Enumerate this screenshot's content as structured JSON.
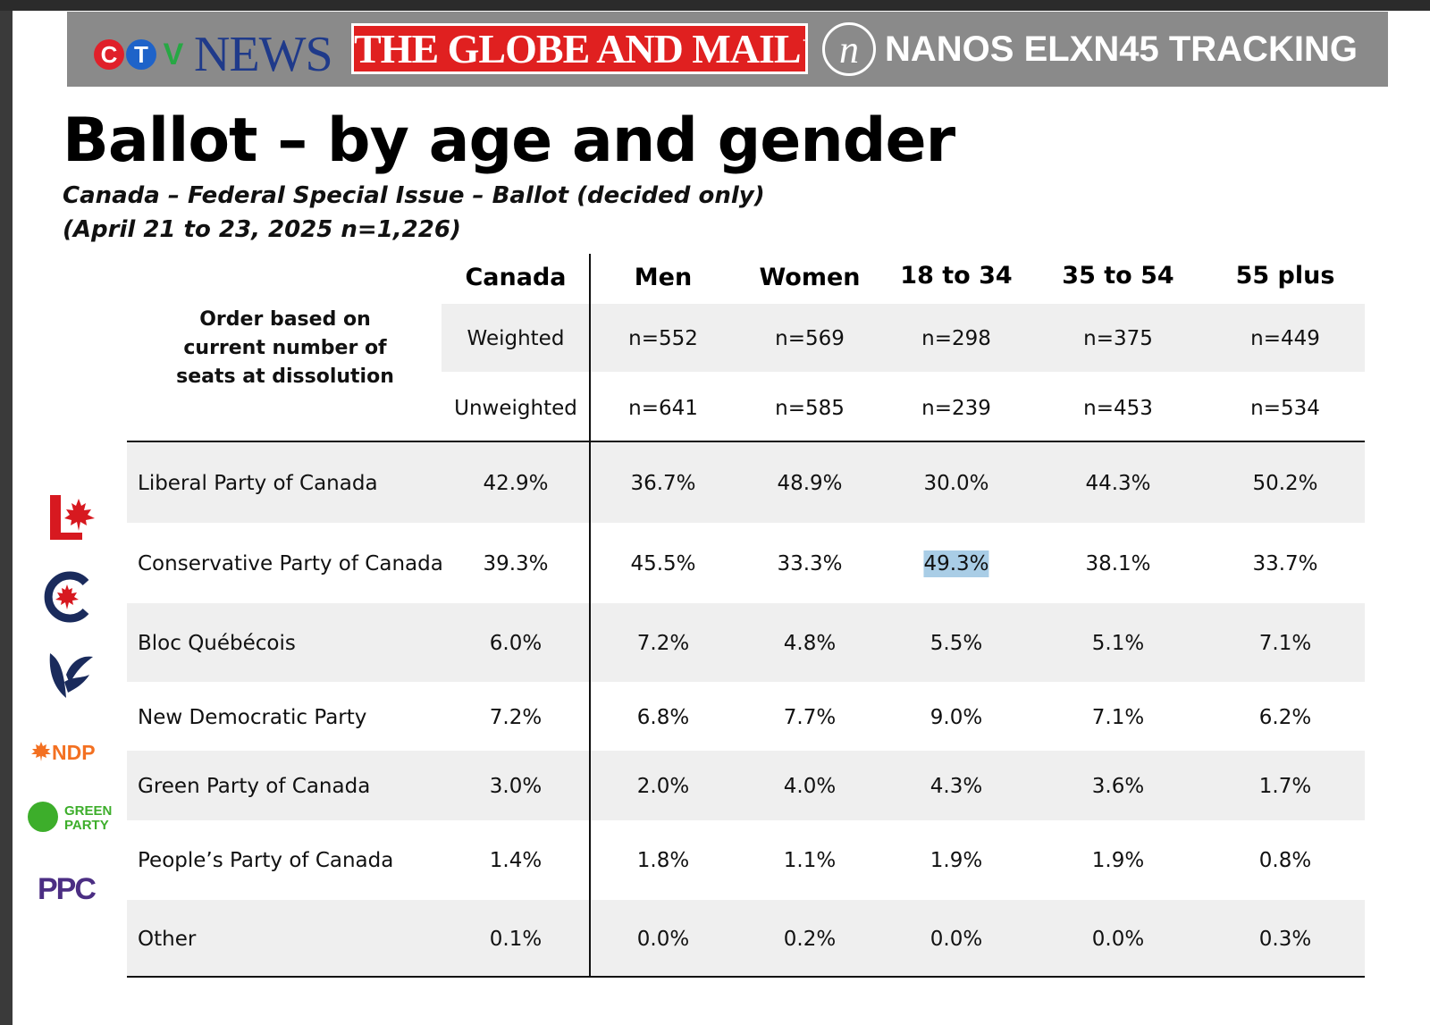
{
  "banner": {
    "ctv_letters": [
      "C",
      "T",
      "V"
    ],
    "ctv_news": "NEWS",
    "globe": "THE GLOBE AND MAIL",
    "nanos_mark": "n",
    "nanos": "NANOS ELXN45 TRACKING",
    "colors": {
      "ctv_c": "#e0202a",
      "ctv_t": "#1e63c9",
      "ctv_v": "#27a844",
      "news": "#1f3a8a",
      "globe_bg": "#e02020",
      "banner_bg": "#8a8a8a"
    }
  },
  "title": "Ballot – by age and gender",
  "subtitle_line1": "Canada – Federal Special Issue – Ballot (decided only)",
  "subtitle_line2": "(April 21 to 23, 2025 n=1,226)",
  "order_note": "Order based on current number of seats at dissolution",
  "columns": [
    "Canada",
    "Men",
    "Women",
    "18 to 34",
    "35 to 54",
    "55 plus"
  ],
  "weighted": {
    "label": "Weighted",
    "values": [
      "n=552",
      "n=569",
      "n=298",
      "n=375",
      "n=449"
    ]
  },
  "unweighted": {
    "label": "Unweighted",
    "values": [
      "n=641",
      "n=585",
      "n=239",
      "n=453",
      "n=534"
    ]
  },
  "parties": [
    {
      "name": "Liberal Party of Canada",
      "values": [
        "42.9%",
        "36.7%",
        "48.9%",
        "30.0%",
        "44.3%",
        "50.2%"
      ],
      "icon": "liberal-logo-icon"
    },
    {
      "name": "Conservative Party of Canada",
      "values": [
        "39.3%",
        "45.5%",
        "33.3%",
        "49.3%",
        "38.1%",
        "33.7%"
      ],
      "icon": "conservative-logo-icon"
    },
    {
      "name": "Bloc Québécois",
      "values": [
        "6.0%",
        "7.2%",
        "4.8%",
        "5.5%",
        "5.1%",
        "7.1%"
      ],
      "icon": "bloc-logo-icon"
    },
    {
      "name": "New Democratic Party",
      "values": [
        "7.2%",
        "6.8%",
        "7.7%",
        "9.0%",
        "7.1%",
        "6.2%"
      ],
      "icon": "ndp-logo-icon"
    },
    {
      "name": "Green Party of Canada",
      "values": [
        "3.0%",
        "2.0%",
        "4.0%",
        "4.3%",
        "3.6%",
        "1.7%"
      ],
      "icon": "green-logo-icon"
    },
    {
      "name": "People’s Party of Canada",
      "values": [
        "1.4%",
        "1.8%",
        "1.1%",
        "1.9%",
        "1.9%",
        "0.8%"
      ],
      "icon": "ppc-logo-icon"
    },
    {
      "name": "Other",
      "values": [
        "0.1%",
        "0.0%",
        "0.2%",
        "0.0%",
        "0.0%",
        "0.3%"
      ]
    }
  ],
  "logos": {
    "ndp": "NDP",
    "green_line1": "GREEN",
    "green_line2": "PARTY",
    "ppc": "PPC"
  },
  "highlight": {
    "row": 1,
    "col": 3,
    "color": "#a9cde6"
  }
}
